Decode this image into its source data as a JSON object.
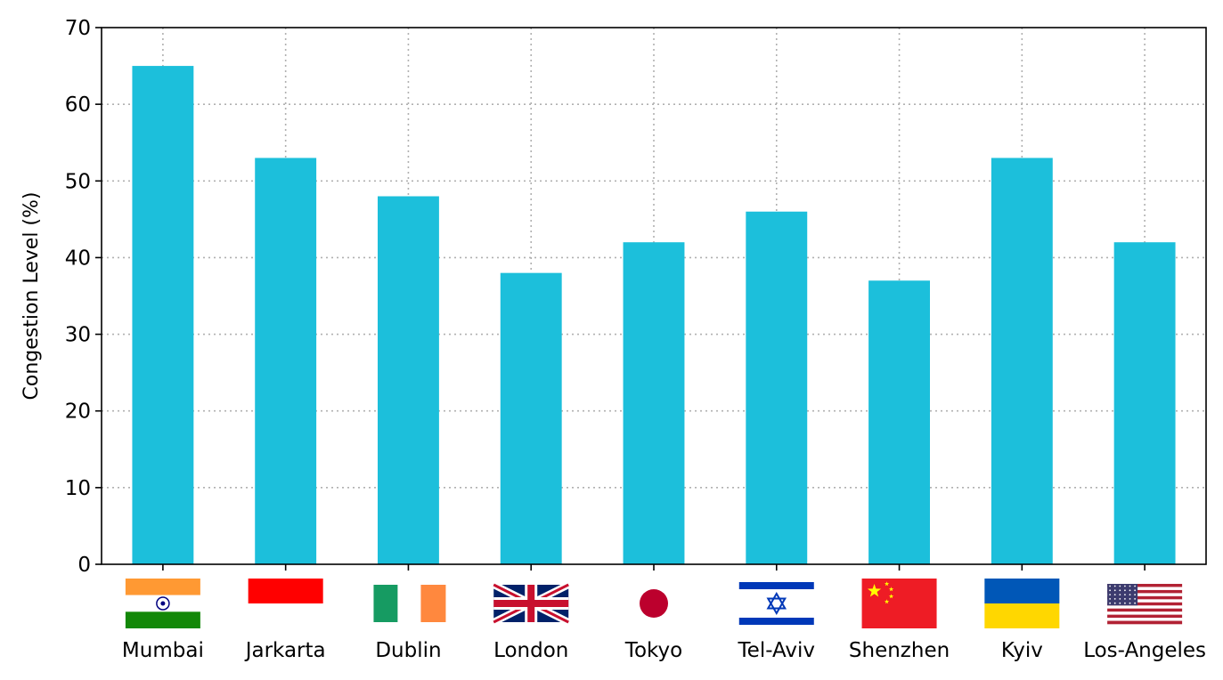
{
  "chart_data": {
    "type": "bar",
    "categories": [
      "Mumbai",
      "Jarkarta",
      "Dublin",
      "London",
      "Tokyo",
      "Tel-Aviv",
      "Shenzhen",
      "Kyiv",
      "Los-Angeles"
    ],
    "values": [
      65,
      53,
      48,
      38,
      42,
      46,
      37,
      53,
      42
    ],
    "ylabel": "Congestion Level (%)",
    "xlabel": "",
    "ylim": [
      0,
      70
    ],
    "yticks": [
      0,
      10,
      20,
      30,
      40,
      50,
      60,
      70
    ],
    "grid": true,
    "bar_color": "#1CBFDB",
    "flag_icons": [
      "india-flag-icon",
      "indonesia-flag-icon",
      "ireland-flag-icon",
      "uk-flag-icon",
      "japan-flag-icon",
      "israel-flag-icon",
      "china-flag-icon",
      "ukraine-flag-icon",
      "usa-flag-icon"
    ]
  }
}
